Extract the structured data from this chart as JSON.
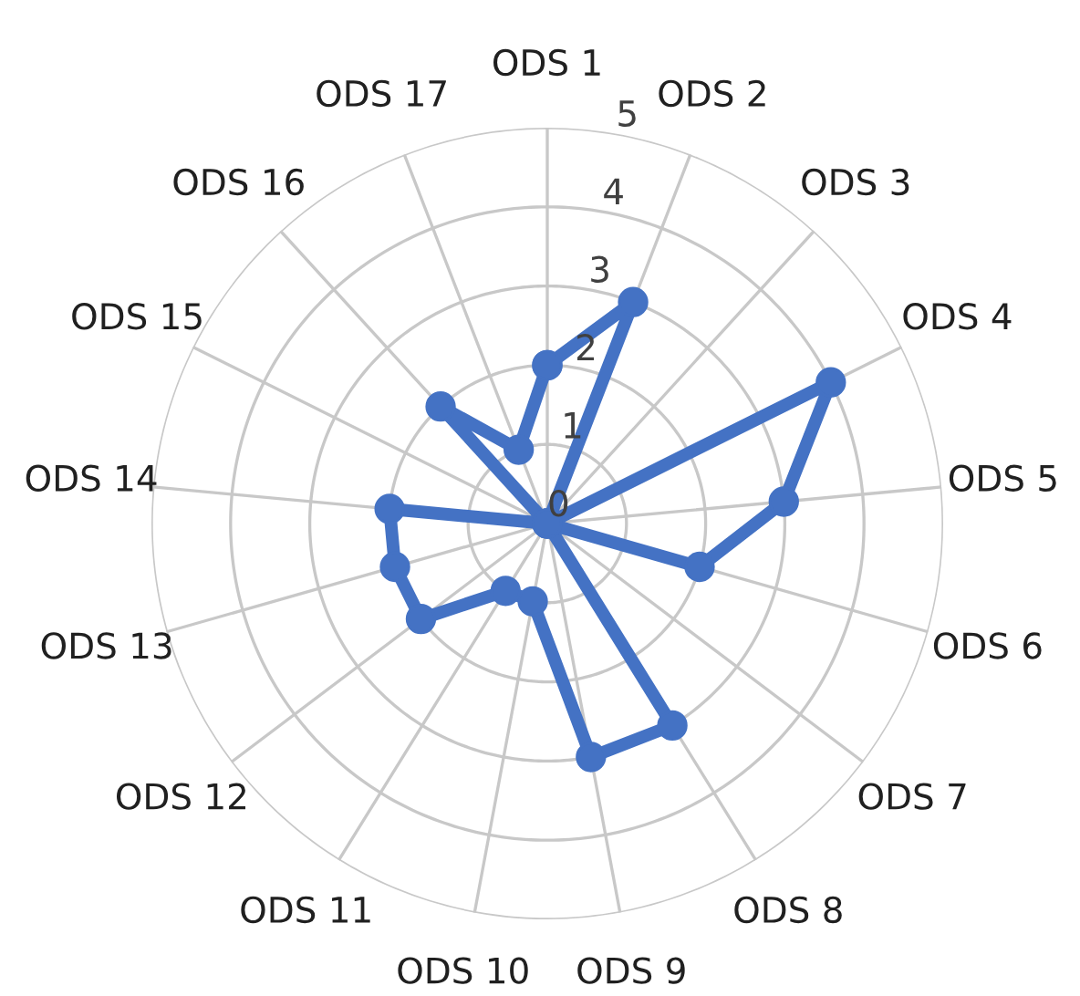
{
  "chart_data": {
    "type": "radar",
    "categories": [
      "ODS 1",
      "ODS 2",
      "ODS 3",
      "ODS 4",
      "ODS 5",
      "ODS 6",
      "ODS 7",
      "ODS 8",
      "ODS 9",
      "ODS 10",
      "ODS 11",
      "ODS 12",
      "ODS 13",
      "ODS 14",
      "ODS 15",
      "ODS 16",
      "ODS 17"
    ],
    "series": [
      {
        "color": "#4472c4",
        "values": [
          2,
          3,
          0,
          4,
          3,
          2,
          0,
          3,
          3,
          1,
          1,
          2,
          2,
          2,
          0,
          2,
          1
        ]
      }
    ],
    "ylim": [
      0,
      5
    ],
    "yticks": [
      0,
      1,
      2,
      3,
      4,
      5
    ],
    "grid": true,
    "marker": "circle",
    "line_style": "solid",
    "legend": false
  }
}
